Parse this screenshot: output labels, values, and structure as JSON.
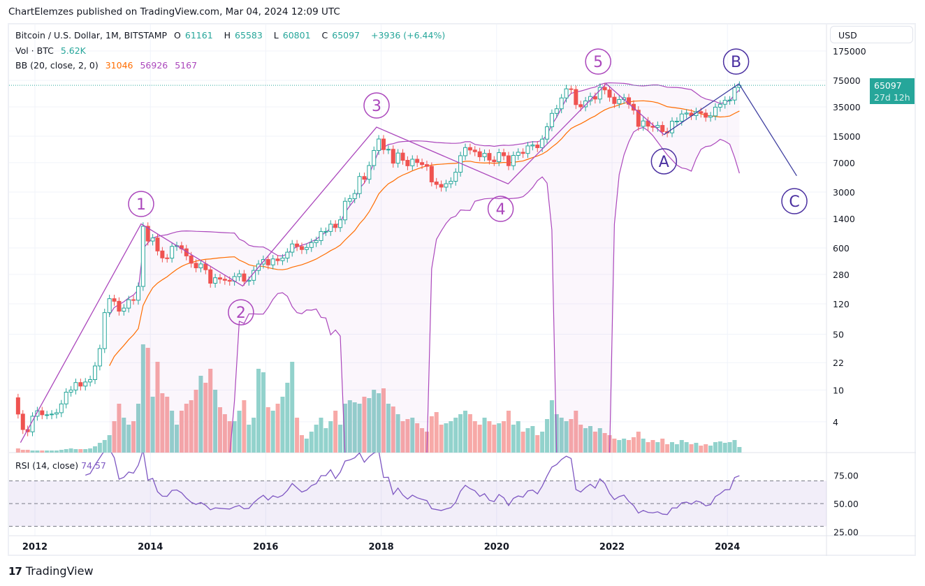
{
  "publisher_line": "ChartElemzes published on TradingView.com, Mar 04, 2024 12:09 UTC",
  "legend": {
    "symbol": "Bitcoin / U.S. Dollar, 1M, BITSTAMP",
    "o_label": "O",
    "o": "61161",
    "h_label": "H",
    "h": "65583",
    "l_label": "L",
    "l": "60801",
    "c_label": "C",
    "c": "65097",
    "change": "+3936 (+6.44%)",
    "vol_label": "Vol · BTC",
    "vol": "5.62K",
    "bb_label": "BB (20, close, 2, 0)",
    "bb_basis": "31046",
    "bb_upper": "56926",
    "bb_lower": "5167",
    "rsi_label": "RSI (14, close)",
    "rsi_value": "74.57"
  },
  "price_axis": {
    "currency": "USD",
    "last_price": "65097",
    "countdown": "27d 12h"
  },
  "footer": {
    "logo_text": "TradingView",
    "logo_mark": "17"
  },
  "colors": {
    "up": "#26a69a",
    "down": "#ef5350",
    "vol_up": "#92d2cc",
    "vol_down": "#f7a9a7",
    "bb_basis": "#ff6d00",
    "bb_band": "#ab47bc",
    "rsi": "#7e57c2",
    "wave": "#ab47bc",
    "wave_abc": "#4a2fa0"
  },
  "chart_data": [
    {
      "type": "candlestick",
      "title": "Bitcoin / U.S. Dollar, 1M, BITSTAMP",
      "start": "2011-09",
      "interval": "1M",
      "y_scale": "log",
      "ylim": [
        2,
        250000
      ],
      "y_ticks": [
        "175000",
        "75000",
        "35000",
        "15000",
        "7000",
        "3000",
        "1400",
        "600",
        "280",
        "120",
        "50",
        "22",
        "10",
        "4"
      ],
      "x_ticks": [
        "2012",
        "2014",
        "2016",
        "2018",
        "2020",
        "2022",
        "2024"
      ],
      "first_open": 8,
      "closes": [
        5.0,
        3.2,
        3.0,
        4.7,
        5.5,
        4.9,
        4.9,
        5.0,
        5.2,
        6.7,
        9.4,
        10,
        12.4,
        11.2,
        12.6,
        13.5,
        20,
        33,
        93,
        139,
        129,
        97,
        106,
        135,
        133,
        198,
        1120,
        732,
        800,
        550,
        450,
        447,
        627,
        640,
        585,
        477,
        386,
        338,
        378,
        320,
        217,
        254,
        244,
        236,
        230,
        263,
        284,
        230,
        236,
        314,
        377,
        430,
        368,
        437,
        416,
        448,
        531,
        673,
        624,
        573,
        608,
        700,
        742,
        963,
        965,
        1190,
        1080,
        1348,
        2300,
        2480,
        2875,
        4700,
        4340,
        6450,
        9950,
        13850,
        10200,
        10300,
        6900,
        9240,
        7500,
        6400,
        7730,
        7030,
        6625,
        6300,
        4020,
        3740,
        3460,
        3820,
        4100,
        5320,
        8560,
        10820,
        10080,
        9600,
        8300,
        9150,
        7550,
        7200,
        9350,
        8540,
        6420,
        8630,
        9450,
        9140,
        11350,
        11650,
        10780,
        13800,
        19700,
        28990,
        33100,
        45200,
        58800,
        57700,
        37300,
        35000,
        41500,
        47100,
        43800,
        61300,
        57000,
        46200,
        38500,
        43200,
        45500,
        37700,
        31800,
        19950,
        23300,
        20050,
        19400,
        20500,
        17150,
        16540,
        23130,
        23150,
        28480,
        29250,
        27200,
        30480,
        29230,
        25940,
        26970,
        34660,
        37720,
        42280,
        42580,
        61161,
        65097
      ],
      "volume_relative": [
        6,
        4,
        4,
        3,
        3,
        3,
        3,
        3,
        3,
        4,
        5,
        6,
        5,
        5,
        5,
        6,
        9,
        14,
        18,
        25,
        45,
        70,
        50,
        40,
        45,
        70,
        155,
        150,
        80,
        130,
        85,
        80,
        60,
        40,
        60,
        70,
        75,
        90,
        110,
        100,
        120,
        90,
        65,
        55,
        45,
        45,
        60,
        75,
        40,
        50,
        120,
        115,
        65,
        60,
        70,
        80,
        100,
        130,
        50,
        25,
        20,
        30,
        40,
        50,
        35,
        45,
        60,
        40,
        70,
        75,
        72,
        70,
        80,
        78,
        90,
        85,
        92,
        70,
        66,
        55,
        45,
        48,
        50,
        42,
        35,
        30,
        52,
        58,
        40,
        42,
        45,
        50,
        55,
        60,
        55,
        45,
        40,
        50,
        45,
        40,
        42,
        45,
        60,
        40,
        45,
        30,
        35,
        38,
        25,
        30,
        48,
        75,
        55,
        50,
        45,
        48,
        60,
        40,
        35,
        38,
        30,
        35,
        28,
        25,
        20,
        18,
        20,
        18,
        22,
        30,
        20,
        15,
        18,
        15,
        20,
        12,
        15,
        12,
        18,
        15,
        12,
        14,
        10,
        12,
        10,
        15,
        16,
        14,
        15,
        18,
        8
      ],
      "indicators": [
        "BB (20, close, 2, 0)",
        "RSI (14, close)"
      ],
      "rsi_levels": {
        "upper": 70,
        "middle": 50,
        "lower": 30,
        "ticks": [
          "75.00",
          "50.00",
          "25.00"
        ]
      },
      "elliott_wave": {
        "path_impulse": [
          {
            "date": 2011.75,
            "price": 2.2
          },
          {
            "date": 2013.84,
            "price": 1200
          },
          {
            "date": 2015.6,
            "price": 200
          },
          {
            "date": 2017.92,
            "price": 19500
          },
          {
            "date": 2020.2,
            "price": 3800
          },
          {
            "date": 2021.9,
            "price": 68000
          },
          {
            "date": 2022.9,
            "price": 15700
          }
        ],
        "path_correction": [
          {
            "date": 2022.9,
            "price": 15700
          },
          {
            "date": 2024.2,
            "price": 68000
          }
        ],
        "path_projection": [
          {
            "date": 2024.2,
            "price": 68000
          },
          {
            "date": 2025.2,
            "price": 4800
          }
        ],
        "labels": [
          {
            "text": "1",
            "date": 2013.84,
            "price": 2130,
            "group": "impulse"
          },
          {
            "text": "2",
            "date": 2015.57,
            "price": 94,
            "group": "impulse"
          },
          {
            "text": "3",
            "date": 2017.92,
            "price": 36400,
            "group": "impulse"
          },
          {
            "text": "4",
            "date": 2020.07,
            "price": 1850,
            "group": "impulse"
          },
          {
            "text": "5",
            "date": 2021.76,
            "price": 129000,
            "group": "impulse"
          },
          {
            "text": "A",
            "date": 2022.9,
            "price": 7280,
            "group": "abc"
          },
          {
            "text": "B",
            "date": 2024.15,
            "price": 129000,
            "group": "abc"
          },
          {
            "text": "C",
            "date": 2025.16,
            "price": 2310,
            "group": "abc"
          }
        ]
      }
    }
  ]
}
